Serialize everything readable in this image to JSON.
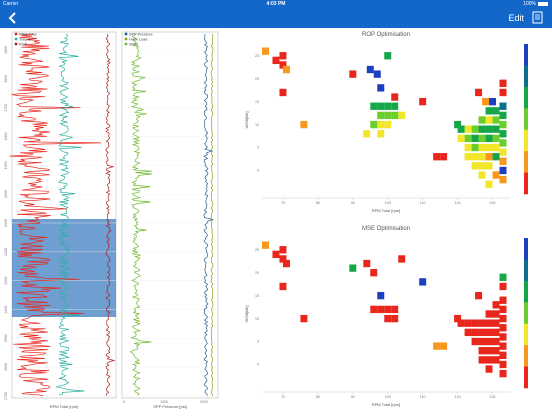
{
  "status_bar": {
    "carrier": "Carrier",
    "time": "4:03 PM",
    "battery": "100%"
  },
  "nav": {
    "edit_label": "Edit",
    "back_icon": "chevron-left-icon",
    "doc_icon": "document-icon"
  },
  "colors": {
    "nav_bg": "#1367c8",
    "rpm": "#e8261c",
    "torque": "#28b0a0",
    "rop": "#b01e1e",
    "spp": "#2a5d8f",
    "hook": "#8aa018",
    "wob": "#6fb82c",
    "highlight": "#3f7dc0"
  },
  "log_panel_1": {
    "legend": [
      "RPM Total",
      "Torque",
      "ROP"
    ],
    "xlabel": "RPM Total [rpm]",
    "depth_labels": [
      "1500",
      "1600",
      "1700",
      "1800",
      "1900",
      "2000",
      "2100",
      "2200",
      "2300",
      "2400",
      "2500",
      "2600",
      "2700"
    ]
  },
  "log_panel_2": {
    "legend": [
      "SPP Pressure",
      "Hook Load",
      "WOB"
    ],
    "xlabel": "SPP Pressure [psi]",
    "xticks": [
      "0",
      "1000",
      "2000"
    ]
  },
  "chart_data": [
    {
      "type": "heatmap",
      "title": "ROP Optimisation",
      "xlabel": "RPM Total [rpm]",
      "ylabel": "WOB[klb]",
      "xticks": [
        "70",
        "80",
        "90",
        "100",
        "110",
        "120",
        "130"
      ],
      "yticks": [
        "0",
        "5",
        "10",
        "15",
        "20",
        "25"
      ],
      "xlim": [
        64,
        135
      ],
      "ylim": [
        -6,
        28
      ],
      "colorbar": [
        "#e8261c",
        "#f7981c",
        "#f1e62a",
        "#6ccd2e",
        "#16a64a",
        "#0a6e8c",
        "#1c3fc2"
      ],
      "cells": [
        [
          65,
          26,
          "#f7981c"
        ],
        [
          68,
          24,
          "#e8261c"
        ],
        [
          70,
          25,
          "#e8261c"
        ],
        [
          70,
          23,
          "#e8261c"
        ],
        [
          71,
          22,
          "#f7981c"
        ],
        [
          70,
          17,
          "#e8261c"
        ],
        [
          76,
          10,
          "#f7981c"
        ],
        [
          90,
          21,
          "#e8261c"
        ],
        [
          100,
          25,
          "#16a64a"
        ],
        [
          95,
          22,
          "#1c3fc2"
        ],
        [
          97,
          21,
          "#1c3fc2"
        ],
        [
          98,
          18,
          "#1c3fc2"
        ],
        [
          104,
          12,
          "#f1e62a"
        ],
        [
          102,
          16,
          "#e8261c"
        ],
        [
          114,
          3,
          "#e8261c"
        ],
        [
          116,
          3,
          "#e8261c"
        ],
        [
          110,
          15,
          "#e8261c"
        ],
        [
          96,
          14,
          "#16a64a"
        ],
        [
          98,
          14,
          "#16a64a"
        ],
        [
          100,
          14,
          "#16a64a"
        ],
        [
          102,
          14,
          "#16a64a"
        ],
        [
          98,
          12,
          "#6ccd2e"
        ],
        [
          100,
          12,
          "#6ccd2e"
        ],
        [
          102,
          12,
          "#6ccd2e"
        ],
        [
          98,
          10,
          "#f1e62a"
        ],
        [
          100,
          10,
          "#f1e62a"
        ],
        [
          98,
          8,
          "#f1e62a"
        ],
        [
          96,
          10,
          "#6ccd2e"
        ],
        [
          94,
          8,
          "#f1e62a"
        ],
        [
          120,
          10,
          "#16a64a"
        ],
        [
          126,
          17,
          "#e8261c"
        ],
        [
          128,
          15,
          "#f7981c"
        ],
        [
          130,
          15,
          "#1c3fc2"
        ],
        [
          131,
          13,
          "#16a64a"
        ],
        [
          133,
          19,
          "#e8261c"
        ],
        [
          133,
          17,
          "#e8261c"
        ],
        [
          133,
          14,
          "#0a6e8c"
        ],
        [
          133,
          12,
          "#16a64a"
        ],
        [
          133,
          10,
          "#6ccd2e"
        ],
        [
          133,
          8,
          "#16a64a"
        ],
        [
          133,
          6,
          "#6ccd2e"
        ],
        [
          133,
          4,
          "#f1e62a"
        ],
        [
          133,
          2,
          "#f7981c"
        ],
        [
          133,
          0,
          "#1c3fc2"
        ],
        [
          131,
          11,
          "#6ccd2e"
        ],
        [
          131,
          9,
          "#16a64a"
        ],
        [
          131,
          7,
          "#6ccd2e"
        ],
        [
          131,
          5,
          "#f1e62a"
        ],
        [
          131,
          3,
          "#16a64a"
        ],
        [
          129,
          13,
          "#16a64a"
        ],
        [
          129,
          11,
          "#f1e62a"
        ],
        [
          129,
          9,
          "#16a64a"
        ],
        [
          129,
          7,
          "#16a64a"
        ],
        [
          129,
          5,
          "#f1e62a"
        ],
        [
          129,
          3,
          "#f7981c"
        ],
        [
          127,
          11,
          "#6ccd2e"
        ],
        [
          127,
          9,
          "#16a64a"
        ],
        [
          127,
          7,
          "#6ccd2e"
        ],
        [
          127,
          5,
          "#f1e62a"
        ],
        [
          127,
          3,
          "#f1e62a"
        ],
        [
          125,
          9,
          "#6ccd2e"
        ],
        [
          125,
          7,
          "#16a64a"
        ],
        [
          125,
          5,
          "#6ccd2e"
        ],
        [
          125,
          3,
          "#f1e62a"
        ],
        [
          125,
          1,
          "#f1e62a"
        ],
        [
          123,
          9,
          "#f1e62a"
        ],
        [
          123,
          7,
          "#6ccd2e"
        ],
        [
          123,
          5,
          "#f1e62a"
        ],
        [
          123,
          3,
          "#f1e62a"
        ],
        [
          121,
          7,
          "#f1e62a"
        ],
        [
          121,
          9,
          "#16a64a"
        ],
        [
          127,
          1,
          "#f1e62a"
        ],
        [
          129,
          1,
          "#f1e62a"
        ],
        [
          131,
          -1,
          "#f7981c"
        ],
        [
          129,
          -3,
          "#f1e62a"
        ],
        [
          127,
          -1,
          "#f1e62a"
        ],
        [
          133,
          -2,
          "#f7981c"
        ]
      ]
    },
    {
      "type": "heatmap",
      "title": "MSE Optimisation",
      "xlabel": "RPM Total [rpm]",
      "ylabel": "WOB[klb]",
      "xticks": [
        "70",
        "80",
        "90",
        "100",
        "110",
        "120",
        "130"
      ],
      "yticks": [
        "0",
        "5",
        "10",
        "15",
        "20",
        "25"
      ],
      "xlim": [
        64,
        135
      ],
      "ylim": [
        -6,
        28
      ],
      "colorbar": [
        "#e8261c",
        "#f7981c",
        "#f1e62a",
        "#6ccd2e",
        "#16a64a",
        "#0a6e8c",
        "#1c3fc2"
      ],
      "cells": [
        [
          65,
          26,
          "#f7981c"
        ],
        [
          68,
          24,
          "#e8261c"
        ],
        [
          70,
          25,
          "#e8261c"
        ],
        [
          70,
          23,
          "#e8261c"
        ],
        [
          71,
          22,
          "#e8261c"
        ],
        [
          70,
          17,
          "#e8261c"
        ],
        [
          76,
          10,
          "#e8261c"
        ],
        [
          90,
          21,
          "#16a64a"
        ],
        [
          94,
          22,
          "#e8261c"
        ],
        [
          96,
          20,
          "#e8261c"
        ],
        [
          98,
          15,
          "#1c3fc2"
        ],
        [
          104,
          23,
          "#e8261c"
        ],
        [
          110,
          18,
          "#1c3fc2"
        ],
        [
          114,
          4,
          "#f7981c"
        ],
        [
          116,
          4,
          "#f7981c"
        ],
        [
          96,
          12,
          "#e8261c"
        ],
        [
          98,
          12,
          "#e8261c"
        ],
        [
          100,
          12,
          "#e8261c"
        ],
        [
          102,
          12,
          "#e8261c"
        ],
        [
          100,
          10,
          "#e8261c"
        ],
        [
          102,
          10,
          "#e8261c"
        ],
        [
          120,
          10,
          "#e8261c"
        ],
        [
          126,
          15,
          "#e8261c"
        ],
        [
          133,
          19,
          "#16a64a"
        ],
        [
          133,
          17,
          "#e8261c"
        ],
        [
          131,
          13,
          "#e8261c"
        ],
        [
          133,
          14,
          "#e8261c"
        ],
        [
          133,
          12,
          "#e8261c"
        ],
        [
          133,
          10,
          "#e8261c"
        ],
        [
          133,
          8,
          "#e8261c"
        ],
        [
          133,
          6,
          "#e8261c"
        ],
        [
          133,
          4,
          "#e8261c"
        ],
        [
          133,
          2,
          "#e8261c"
        ],
        [
          133,
          0,
          "#e8261c"
        ],
        [
          133,
          -2,
          "#e8261c"
        ],
        [
          131,
          11,
          "#e8261c"
        ],
        [
          131,
          9,
          "#e8261c"
        ],
        [
          131,
          7,
          "#e8261c"
        ],
        [
          131,
          5,
          "#e8261c"
        ],
        [
          131,
          3,
          "#e8261c"
        ],
        [
          131,
          1,
          "#e8261c"
        ],
        [
          129,
          11,
          "#e8261c"
        ],
        [
          129,
          9,
          "#e8261c"
        ],
        [
          129,
          7,
          "#e8261c"
        ],
        [
          129,
          5,
          "#e8261c"
        ],
        [
          129,
          3,
          "#e8261c"
        ],
        [
          127,
          9,
          "#e8261c"
        ],
        [
          127,
          7,
          "#e8261c"
        ],
        [
          127,
          5,
          "#e8261c"
        ],
        [
          127,
          3,
          "#e8261c"
        ],
        [
          125,
          9,
          "#e8261c"
        ],
        [
          125,
          7,
          "#e8261c"
        ],
        [
          125,
          5,
          "#e8261c"
        ],
        [
          123,
          9,
          "#e8261c"
        ],
        [
          123,
          7,
          "#e8261c"
        ],
        [
          121,
          9,
          "#e8261c"
        ],
        [
          129,
          1,
          "#e8261c"
        ],
        [
          127,
          1,
          "#e8261c"
        ],
        [
          129,
          -1,
          "#e8261c"
        ]
      ]
    }
  ]
}
